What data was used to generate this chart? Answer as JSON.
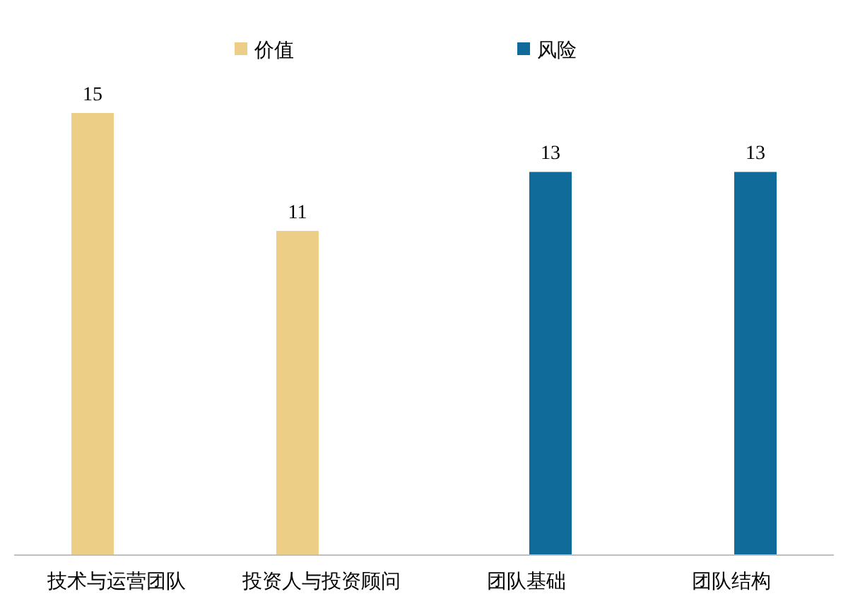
{
  "chart_data": {
    "type": "bar",
    "categories": [
      "技术与运营团队",
      "投资人与投资顾问",
      "团队基础",
      "团队结构"
    ],
    "series": [
      {
        "name": "价值",
        "color": "#ecce86",
        "values": [
          15,
          11,
          null,
          null
        ]
      },
      {
        "name": "风险",
        "color": "#106b9b",
        "values": [
          null,
          null,
          13,
          13
        ]
      }
    ],
    "data_labels": true,
    "legend": "top",
    "grid": false
  }
}
